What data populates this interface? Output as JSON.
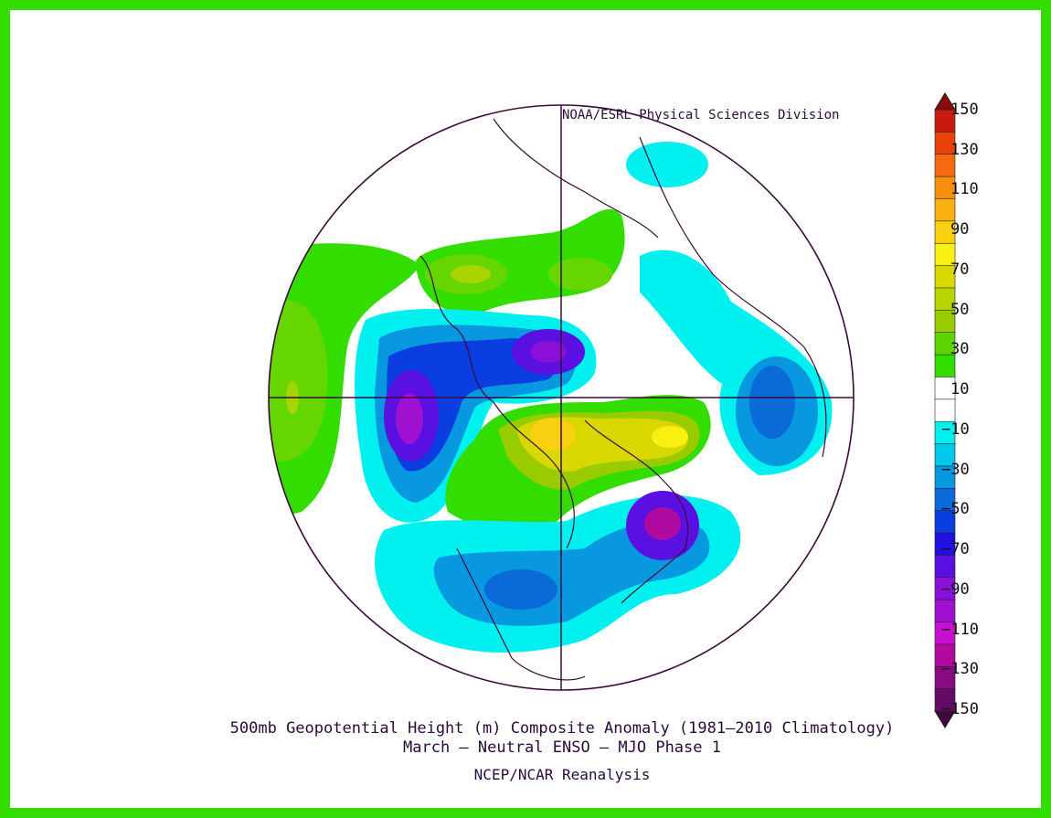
{
  "header": {
    "credit": "NOAA/ESRL Physical Sciences Division"
  },
  "footer": {
    "title_line1": "500mb Geopotential Height (m) Composite Anomaly (1981–2010 Climatology)",
    "title_line2": "March – Neutral ENSO – MJO Phase 1",
    "source": "NCEP/NCAR Reanalysis"
  },
  "colorbar": {
    "labels": [
      "150",
      "130",
      "110",
      "90",
      "70",
      "50",
      "30",
      "10",
      "−10",
      "−30",
      "−50",
      "−70",
      "−90",
      "−110",
      "−130",
      "−150"
    ],
    "colors": [
      "#8a0a0a",
      "#c81a10",
      "#e8420a",
      "#f56a10",
      "#f88e10",
      "#f8b010",
      "#f8d010",
      "#f8f010",
      "#d8d800",
      "#b8d400",
      "#98cc00",
      "#5cd400",
      "#33dd00",
      "#ffffff",
      "#ffffff",
      "#00f0f0",
      "#00c8ec",
      "#0898e0",
      "#0a6ad8",
      "#0a3ee0",
      "#2010e0",
      "#5a10e0",
      "#8a10d8",
      "#a010d0",
      "#c810d0",
      "#b00aa0",
      "#880a80",
      "#640a64",
      "#42063e"
    ]
  },
  "colors": {
    "border": "#33dd00",
    "outline": "#3a0a3a"
  }
}
